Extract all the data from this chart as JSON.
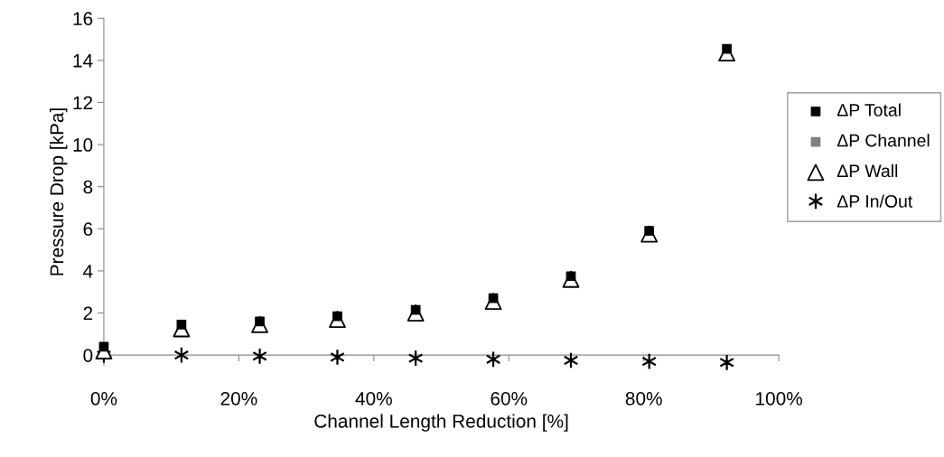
{
  "chart_data": {
    "type": "scatter",
    "xlabel": "Channel Length Reduction [%]",
    "ylabel": "Pressure Drop [kPa]",
    "x": [
      0,
      11.5,
      23.1,
      34.6,
      46.2,
      57.7,
      69.2,
      80.8,
      92.3
    ],
    "series": [
      {
        "name": "ΔP Total",
        "color": "#000000",
        "marker": "square",
        "values": [
          0.4,
          1.45,
          1.6,
          1.85,
          2.15,
          2.7,
          3.75,
          5.9,
          14.55
        ]
      },
      {
        "name": "ΔP Channel",
        "color": "#808080",
        "marker": "square",
        "values": [
          null,
          null,
          null,
          null,
          null,
          null,
          null,
          null,
          null
        ]
      },
      {
        "name": "ΔP Wall",
        "color": "#000000",
        "marker": "triangle",
        "values": [
          0.2,
          1.25,
          1.45,
          1.7,
          2.0,
          2.55,
          3.6,
          5.75,
          14.35
        ]
      },
      {
        "name": "ΔP In/Out",
        "color": "#000000",
        "marker": "cross",
        "values": [
          0.0,
          0.0,
          -0.05,
          -0.1,
          -0.15,
          -0.2,
          -0.25,
          -0.3,
          -0.35
        ]
      }
    ],
    "xlim": [
      0,
      100
    ],
    "xticks": [
      {
        "value": 0,
        "label": "0%"
      },
      {
        "value": 20,
        "label": "20%"
      },
      {
        "value": 40,
        "label": "40%"
      },
      {
        "value": 60,
        "label": "60%"
      },
      {
        "value": 80,
        "label": "80%"
      },
      {
        "value": 100,
        "label": "100%"
      }
    ],
    "ylim": [
      -0.5,
      16
    ],
    "yticks": [
      0,
      2,
      4,
      6,
      8,
      10,
      12,
      14,
      16
    ],
    "grid": false,
    "legend": "right"
  }
}
